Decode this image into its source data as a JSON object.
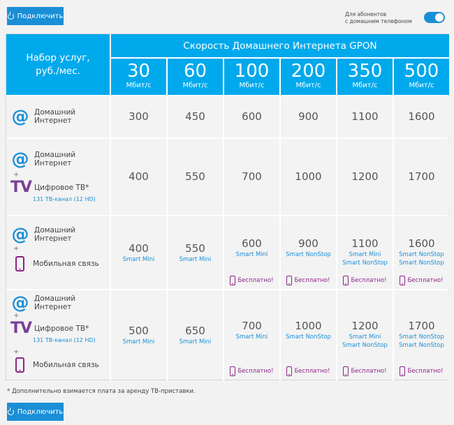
{
  "top_button": {
    "label": "Подключить"
  },
  "bottom_button": {
    "label": "Подключить"
  },
  "toggle": {
    "label_line1": "Для абонентов",
    "label_line2": "с домашним телефоном",
    "state": "on"
  },
  "header": {
    "left_line1": "Набор услуг,",
    "left_line2": "руб./мес.",
    "title": "Скорость Домашнего Интернета GPON",
    "unit": "Мбит/с",
    "speeds": [
      "30",
      "60",
      "100",
      "200",
      "350",
      "500"
    ]
  },
  "services": {
    "internet_line1": "Домашний",
    "internet_line2": "Интернет",
    "tv": "Цифровое ТВ*",
    "tv_channels": "131 ТВ-канал (12 HD)",
    "mobile": "Мобильная связь",
    "plus": "+",
    "at_glyph": "@",
    "tv_glyph": "TV"
  },
  "rows": [
    {
      "prices": [
        "300",
        "450",
        "600",
        "900",
        "1100",
        "1600"
      ]
    },
    {
      "prices": [
        "400",
        "550",
        "700",
        "1000",
        "1200",
        "1700"
      ]
    },
    {
      "prices": [
        "400",
        "550",
        "600",
        "900",
        "1100",
        "1600"
      ],
      "plans": [
        "Smart Mini",
        "Smart Mini",
        "Smart Mini",
        "Smart NonStop",
        "Smart Mini",
        "Smart NonStop"
      ],
      "plans2": [
        "",
        "",
        "",
        "",
        "Smart NonStop",
        "Smart NonStop"
      ]
    },
    {
      "prices": [
        "500",
        "650",
        "700",
        "1000",
        "1200",
        "1700"
      ],
      "plans": [
        "Smart Mini",
        "Smart Mini",
        "Smart Mini",
        "Smart NonStop",
        "Smart Mini",
        "Smart NonStop"
      ],
      "plans2": [
        "",
        "",
        "",
        "",
        "Smart NonStop",
        "Smart NonStop"
      ]
    }
  ],
  "free_label": "Бесплатно!",
  "footnote": "* Дополнительно взимается плата за аренду ТВ-приставки.",
  "colors": {
    "accent": "#00a9ec",
    "button": "#1a8fd6",
    "purple": "#8b2388"
  }
}
